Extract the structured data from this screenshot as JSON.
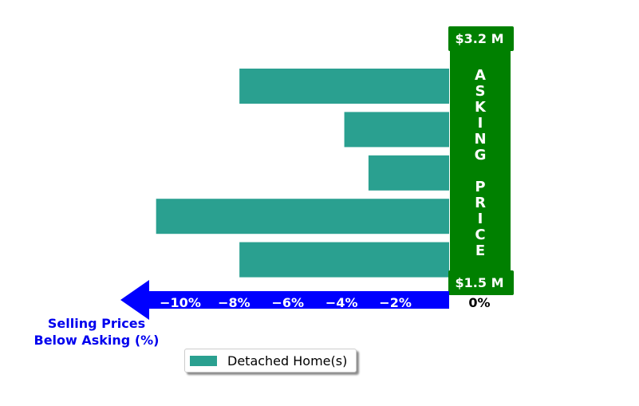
{
  "chart_data": {
    "type": "bar",
    "orientation": "horizontal",
    "series": [
      {
        "name": "Detached Home(s)",
        "values": [
          -7.8,
          -3.9,
          -3.0,
          -10.9,
          -7.8
        ],
        "color": "#2aa090"
      }
    ],
    "xticks": [
      -10,
      -8,
      -6,
      -4,
      -2,
      0
    ],
    "xtick_labels": [
      "−10%",
      "−8%",
      "−6%",
      "−4%",
      "−2%",
      "0%"
    ],
    "xlim": [
      -11.5,
      0
    ],
    "xlabel_lines": [
      "Selling Prices",
      "Below Asking (%)"
    ],
    "asking_price_label": "ASKING PRICE",
    "price_top": "$3.2 M",
    "price_bottom": "$1.5 M",
    "legend_placement": "bottom-center",
    "colors": {
      "bar": "#2aa090",
      "asking": "#008000",
      "axis_arrow": "#0000ff",
      "axis_title": "#0000ee"
    }
  }
}
